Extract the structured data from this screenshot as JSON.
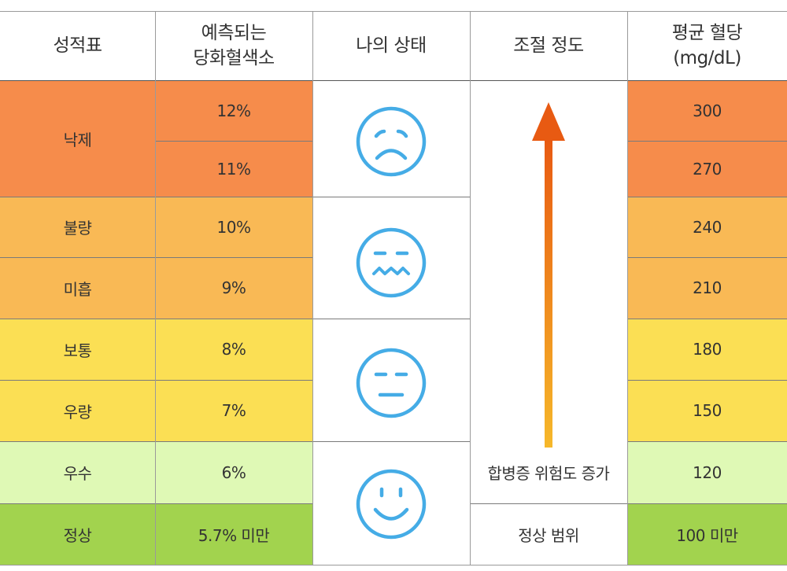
{
  "table": {
    "headers": {
      "report": "성적표",
      "hba1c": [
        "예측되는",
        "당화혈색소"
      ],
      "state": "나의 상태",
      "control": "조절 정도",
      "glucose": [
        "평균 혈당",
        "(mg/dL)"
      ]
    },
    "grades": [
      "낙제",
      "불량",
      "미흡",
      "보통",
      "우량",
      "우수",
      "정상"
    ],
    "hba1c_values": [
      "12%",
      "11%",
      "10%",
      "9%",
      "8%",
      "7%",
      "6%",
      "5.7% 미만"
    ],
    "glucose_values": [
      "300",
      "270",
      "240",
      "210",
      "180",
      "150",
      "120",
      "100 미만"
    ],
    "faces": [
      "sad-face-icon",
      "worried-face-icon",
      "neutral-face-icon",
      "smile-face-icon"
    ],
    "risk_label": "합병증 위험도 증가",
    "normal_range": "정상 범위"
  },
  "colors": {
    "orange": "#F68C4B",
    "light_orange": "#F9B955",
    "yellow": "#FBDF54",
    "light_green": "#DFF9B5",
    "green": "#A2D34E",
    "face_blue": "#45ACE6",
    "arrow_top": "#E85A12",
    "arrow_bottom": "#F6B82A"
  }
}
